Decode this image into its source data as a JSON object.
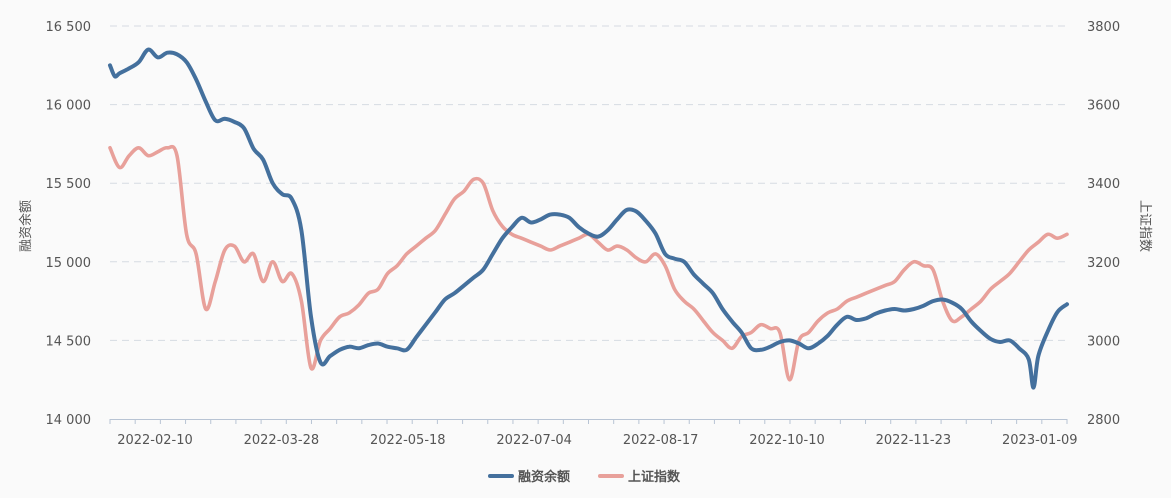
{
  "chart_data": {
    "type": "line",
    "x_tick_labels": [
      "2022-02-10",
      "2022-03-28",
      "2022-05-18",
      "2022-07-04",
      "2022-08-17",
      "2022-10-10",
      "2022-11-23",
      "2023-01-09"
    ],
    "left_axis": {
      "label": "融资余额",
      "ticks": [
        "14 000",
        "14 500",
        "15 000",
        "15 500",
        "16 000",
        "16 500"
      ],
      "range": [
        14000,
        16500
      ]
    },
    "right_axis": {
      "label": "上证指数",
      "ticks": [
        "2800",
        "3000",
        "3200",
        "3400",
        "3600",
        "3800"
      ],
      "range": [
        2800,
        3800
      ]
    },
    "grid": "horizontal dashed",
    "legend_position": "bottom-center",
    "x_range": [
      0,
      100
    ],
    "series": [
      {
        "name": "融资余额",
        "axis": "left",
        "color": "#44709d",
        "x": [
          0,
          0.5,
          1,
          2,
          3,
          4,
          5,
          6,
          7,
          8,
          9,
          10,
          11,
          12,
          13,
          14,
          15,
          16,
          17,
          18,
          19,
          20,
          21,
          22,
          23,
          24,
          25,
          26,
          27,
          28,
          29,
          30,
          31,
          32,
          33,
          34,
          35,
          36,
          37,
          38,
          39,
          40,
          41,
          42,
          43,
          44,
          45,
          46,
          47,
          48,
          49,
          50,
          51,
          52,
          53,
          54,
          55,
          56,
          57,
          58,
          59,
          60,
          61,
          62,
          63,
          64,
          65,
          66,
          67,
          68,
          69,
          70,
          71,
          72,
          73,
          74,
          75,
          76,
          77,
          78,
          79,
          80,
          81,
          82,
          83,
          84,
          85,
          86,
          87,
          88,
          89,
          90,
          91,
          92,
          93,
          94,
          95,
          96,
          96.5,
          97,
          98,
          99,
          100
        ],
        "values": [
          16250,
          16180,
          16200,
          16230,
          16270,
          16350,
          16300,
          16330,
          16320,
          16270,
          16160,
          16020,
          15900,
          15910,
          15890,
          15850,
          15720,
          15650,
          15500,
          15430,
          15400,
          15200,
          14650,
          14360,
          14400,
          14440,
          14460,
          14450,
          14470,
          14480,
          14460,
          14450,
          14440,
          14520,
          14600,
          14680,
          14760,
          14800,
          14850,
          14900,
          14950,
          15050,
          15150,
          15220,
          15280,
          15250,
          15270,
          15300,
          15300,
          15280,
          15220,
          15180,
          15160,
          15200,
          15270,
          15330,
          15320,
          15260,
          15180,
          15050,
          15020,
          15000,
          14920,
          14860,
          14800,
          14700,
          14620,
          14550,
          14450,
          14440,
          14460,
          14490,
          14500,
          14480,
          14450,
          14480,
          14530,
          14600,
          14650,
          14630,
          14640,
          14670,
          14690,
          14700,
          14690,
          14700,
          14720,
          14750,
          14760,
          14740,
          14700,
          14620,
          14560,
          14510,
          14490,
          14500,
          14450,
          14380,
          14200,
          14400,
          14560,
          14680,
          14730
        ]
      },
      {
        "name": "上证指数",
        "axis": "right",
        "color": "#e8a09a",
        "x": [
          0,
          1,
          2,
          3,
          4,
          5,
          6,
          7,
          8,
          9,
          10,
          11,
          12,
          13,
          14,
          15,
          16,
          17,
          18,
          19,
          20,
          21,
          22,
          23,
          24,
          25,
          26,
          27,
          28,
          29,
          30,
          31,
          32,
          33,
          34,
          35,
          36,
          37,
          38,
          39,
          40,
          41,
          42,
          43,
          44,
          45,
          46,
          47,
          48,
          49,
          50,
          51,
          52,
          53,
          54,
          55,
          56,
          57,
          58,
          59,
          60,
          61,
          62,
          63,
          64,
          65,
          66,
          67,
          68,
          69,
          70,
          71,
          72,
          73,
          74,
          75,
          76,
          77,
          78,
          79,
          80,
          81,
          82,
          83,
          84,
          85,
          86,
          87,
          88,
          89,
          90,
          91,
          92,
          93,
          94,
          95,
          96,
          97,
          98,
          99,
          100
        ],
        "values": [
          3490,
          3440,
          3470,
          3490,
          3470,
          3480,
          3490,
          3470,
          3270,
          3220,
          3080,
          3150,
          3230,
          3240,
          3200,
          3220,
          3150,
          3200,
          3150,
          3170,
          3100,
          2930,
          3000,
          3030,
          3060,
          3070,
          3090,
          3120,
          3130,
          3170,
          3190,
          3220,
          3240,
          3260,
          3280,
          3320,
          3360,
          3380,
          3410,
          3400,
          3330,
          3290,
          3270,
          3260,
          3250,
          3240,
          3230,
          3240,
          3250,
          3260,
          3270,
          3250,
          3230,
          3240,
          3230,
          3210,
          3200,
          3220,
          3190,
          3130,
          3100,
          3080,
          3050,
          3020,
          3000,
          2980,
          3010,
          3020,
          3040,
          3030,
          3020,
          2900,
          3000,
          3020,
          3050,
          3070,
          3080,
          3100,
          3110,
          3120,
          3130,
          3140,
          3150,
          3180,
          3200,
          3190,
          3180,
          3100,
          3050,
          3060,
          3080,
          3100,
          3130,
          3150,
          3170,
          3200,
          3230,
          3250,
          3270,
          3260,
          3270
        ]
      }
    ]
  }
}
